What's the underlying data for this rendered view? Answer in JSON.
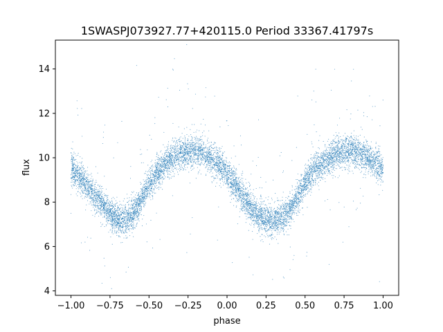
{
  "chart_data": {
    "type": "scatter",
    "title": "1SWASPJ073927.77+420115.0 Period 33367.41797s",
    "xlabel": "phase",
    "ylabel": "flux",
    "xlim": [
      -1.1,
      1.1
    ],
    "ylim": [
      3.8,
      15.3
    ],
    "xticks": [
      -1.0,
      -0.75,
      -0.5,
      -0.25,
      0.0,
      0.25,
      0.5,
      0.75,
      1.0
    ],
    "xtick_labels": [
      "−1.00",
      "−0.75",
      "−0.50",
      "−0.25",
      "0.00",
      "0.25",
      "0.50",
      "0.75",
      "1.00"
    ],
    "yticks": [
      4,
      6,
      8,
      10,
      12,
      14
    ],
    "ytick_labels": [
      "4",
      "6",
      "8",
      "10",
      "12",
      "14"
    ],
    "grid": false,
    "marker_color": "#1f77b4",
    "series": [
      {
        "phase": [
          -1.0,
          -0.95,
          -0.9,
          -0.85,
          -0.8,
          -0.75,
          -0.7,
          -0.65,
          -0.6,
          -0.55,
          -0.5,
          -0.45,
          -0.4,
          -0.35,
          -0.3,
          -0.25,
          -0.2,
          -0.15,
          -0.1,
          -0.05,
          0.0,
          0.05,
          0.1,
          0.15,
          0.2,
          0.25,
          0.3,
          0.35,
          0.4,
          0.45,
          0.5,
          0.55,
          0.6,
          0.65,
          0.7,
          0.75,
          0.8,
          0.85,
          0.9,
          0.95,
          1.0
        ],
        "flux_mean": [
          9.5,
          9.2,
          8.8,
          8.3,
          7.9,
          7.5,
          7.2,
          7.2,
          7.5,
          8.1,
          8.8,
          9.3,
          9.7,
          10.0,
          10.2,
          10.3,
          10.3,
          10.2,
          10.0,
          9.7,
          9.3,
          8.8,
          8.3,
          7.8,
          7.4,
          7.2,
          7.1,
          7.3,
          7.6,
          8.2,
          8.9,
          9.4,
          9.7,
          10.0,
          10.2,
          10.3,
          10.3,
          10.2,
          10.0,
          9.8,
          9.5
        ],
        "scatter_sigma": 0.35,
        "point_count": 9000,
        "outlier_fraction": 0.03
      }
    ]
  }
}
